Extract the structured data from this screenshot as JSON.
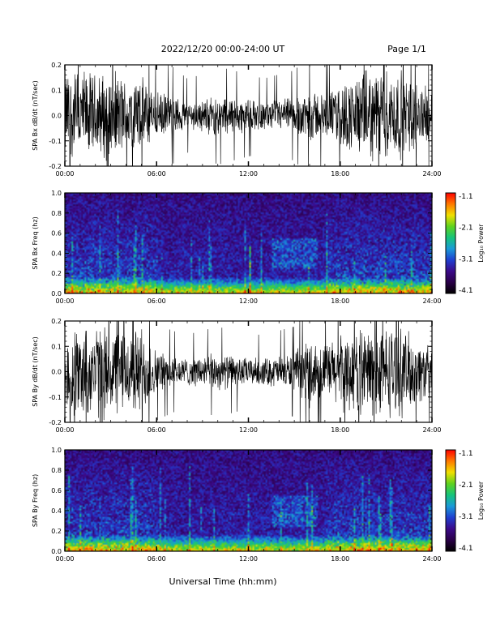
{
  "header": {
    "title": "2022/12/20  00:00-24:00 UT",
    "page": "Page 1/1"
  },
  "footer": {
    "xlabel": "Universal Time (hh:mm)"
  },
  "colors": {
    "trace": "#000000",
    "colormap": [
      "#000000",
      "#2a0048",
      "#3b0a8a",
      "#1f3fd0",
      "#1a9ad8",
      "#16c47a",
      "#5fd21e",
      "#f0e000",
      "#ff7a00",
      "#ff0000"
    ]
  },
  "chart_data": [
    {
      "type": "line",
      "ylabel": "SPA Bx dB/dt (nT/sec)",
      "xlim": [
        0,
        24
      ],
      "ylim": [
        -0.2,
        0.2
      ],
      "x_ticks": [
        "00:00",
        "06:00",
        "12:00",
        "18:00",
        "24:00"
      ],
      "y_ticks": [
        "-0.2",
        "-0.1",
        "0.0",
        "0.1",
        "0.2"
      ],
      "envelope": {
        "hours": [
          0,
          1,
          2,
          3,
          4,
          5,
          6,
          7,
          8,
          9,
          10,
          11,
          12,
          13,
          14,
          15,
          16,
          17,
          18,
          19,
          20,
          21,
          22,
          23,
          24
        ],
        "amplitude": [
          0.2,
          0.2,
          0.18,
          0.2,
          0.16,
          0.17,
          0.1,
          0.09,
          0.06,
          0.07,
          0.09,
          0.08,
          0.07,
          0.06,
          0.07,
          0.08,
          0.12,
          0.09,
          0.14,
          0.17,
          0.2,
          0.2,
          0.19,
          0.15,
          0.1
        ]
      }
    },
    {
      "type": "heatmap",
      "ylabel": "SPA Bx Freq (hz)",
      "colorbar_label": "Log₁₀ Power",
      "colorbar_ticks": [
        "-1.1",
        "-2.1",
        "-3.1",
        "-4.1"
      ],
      "clim": [
        -4.1,
        -1.1
      ],
      "xlim": [
        0,
        24
      ],
      "ylim": [
        0,
        1.0
      ],
      "x_ticks": [
        "00:00",
        "06:00",
        "12:00",
        "18:00",
        "24:00"
      ],
      "y_ticks": [
        "0.0",
        "0.2",
        "0.4",
        "0.6",
        "0.8",
        "1.0"
      ]
    },
    {
      "type": "line",
      "ylabel": "SPA By dB/dt (nT/sec)",
      "xlim": [
        0,
        24
      ],
      "ylim": [
        -0.2,
        0.2
      ],
      "x_ticks": [
        "00:00",
        "06:00",
        "12:00",
        "18:00",
        "24:00"
      ],
      "y_ticks": [
        "-0.2",
        "-0.1",
        "0.0",
        "0.1",
        "0.2"
      ],
      "envelope": {
        "hours": [
          0,
          1,
          2,
          3,
          4,
          5,
          6,
          7,
          8,
          9,
          10,
          11,
          12,
          13,
          14,
          15,
          16,
          17,
          18,
          19,
          20,
          21,
          22,
          23,
          24
        ],
        "amplitude": [
          0.2,
          0.2,
          0.2,
          0.2,
          0.18,
          0.2,
          0.09,
          0.07,
          0.06,
          0.07,
          0.08,
          0.07,
          0.06,
          0.06,
          0.07,
          0.08,
          0.15,
          0.12,
          0.16,
          0.18,
          0.2,
          0.2,
          0.19,
          0.15,
          0.1
        ]
      }
    },
    {
      "type": "heatmap",
      "ylabel": "SPA By Freq (hz)",
      "colorbar_label": "Log₁₀ Power",
      "colorbar_ticks": [
        "-1.1",
        "-2.1",
        "-3.1",
        "-4.1"
      ],
      "clim": [
        -4.1,
        -1.1
      ],
      "xlim": [
        0,
        24
      ],
      "ylim": [
        0,
        1.0
      ],
      "x_ticks": [
        "00:00",
        "06:00",
        "12:00",
        "18:00",
        "24:00"
      ],
      "y_ticks": [
        "0.0",
        "0.2",
        "0.4",
        "0.6",
        "0.8",
        "1.0"
      ]
    }
  ]
}
